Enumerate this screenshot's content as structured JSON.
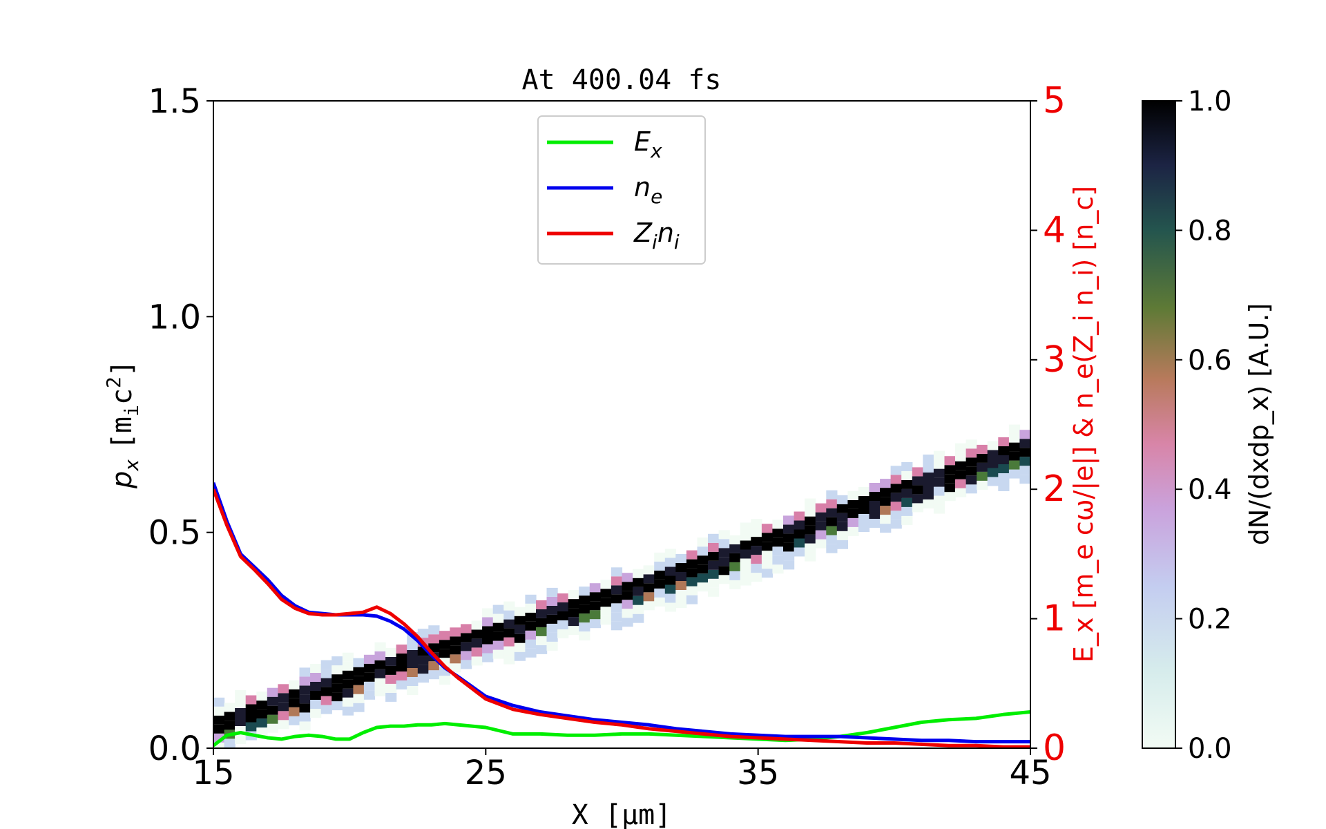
{
  "chart_data": {
    "type": "line",
    "title": "At 400.04 fs",
    "xlabel": "X [μm]",
    "ylabel_left": {
      "main": "p",
      "sub": "x",
      "unit": "[m",
      "unit_sub": "i",
      "unit_tail": "c",
      "unit_sup": "2",
      "unit_close": "]"
    },
    "ylabel_right": "E_x [m_e cω/|e|] & n_e(Z_i n_i) [n_c]",
    "xlim": [
      15,
      45
    ],
    "ylim_left": [
      0,
      1.5
    ],
    "ylim_right": [
      0,
      5
    ],
    "x_ticks": [
      "15",
      "25",
      "35",
      "45"
    ],
    "y_ticks_left": [
      "0.0",
      "0.5",
      "1.0",
      "1.5"
    ],
    "y_ticks_right": [
      "0",
      "1",
      "2",
      "3",
      "4",
      "5"
    ],
    "grid": false,
    "legend_position": "top-center",
    "series": [
      {
        "name": "E_x",
        "color": "#00ee00",
        "axis": "right",
        "x": [
          15,
          15.5,
          16,
          16.5,
          17,
          17.5,
          18,
          18.5,
          19,
          19.5,
          20,
          20.5,
          21,
          21.5,
          22,
          22.5,
          23,
          23.5,
          24,
          25,
          26,
          27,
          28,
          29,
          30,
          31,
          32,
          33,
          34,
          35,
          36,
          37,
          38,
          39,
          40,
          41,
          42,
          43,
          44,
          45
        ],
        "y": [
          0.02,
          0.1,
          0.12,
          0.1,
          0.08,
          0.07,
          0.09,
          0.1,
          0.09,
          0.07,
          0.07,
          0.12,
          0.16,
          0.17,
          0.17,
          0.18,
          0.18,
          0.19,
          0.18,
          0.16,
          0.11,
          0.11,
          0.1,
          0.1,
          0.11,
          0.11,
          0.1,
          0.09,
          0.08,
          0.07,
          0.06,
          0.07,
          0.09,
          0.12,
          0.16,
          0.2,
          0.22,
          0.23,
          0.26,
          0.28
        ]
      },
      {
        "name": "n_e",
        "color": "#0000ee",
        "axis": "right",
        "x": [
          15,
          15.5,
          16,
          16.5,
          17,
          17.5,
          18,
          18.5,
          19,
          19.5,
          20,
          20.5,
          21,
          21.5,
          22,
          22.5,
          23,
          23.5,
          24,
          25,
          26,
          27,
          28,
          29,
          30,
          31,
          32,
          33,
          34,
          35,
          36,
          37,
          38,
          39,
          40,
          41,
          42,
          43,
          44,
          45
        ],
        "y": [
          2.05,
          1.75,
          1.5,
          1.4,
          1.3,
          1.18,
          1.1,
          1.05,
          1.04,
          1.03,
          1.03,
          1.03,
          1.02,
          0.98,
          0.92,
          0.83,
          0.72,
          0.62,
          0.55,
          0.4,
          0.33,
          0.28,
          0.25,
          0.22,
          0.2,
          0.18,
          0.15,
          0.13,
          0.11,
          0.1,
          0.09,
          0.09,
          0.09,
          0.08,
          0.07,
          0.06,
          0.06,
          0.05,
          0.05,
          0.05
        ]
      },
      {
        "name": "Z_i n_i",
        "color": "#ee0000",
        "axis": "right",
        "x": [
          15,
          15.5,
          16,
          16.5,
          17,
          17.5,
          18,
          18.5,
          19,
          19.5,
          20,
          20.5,
          21,
          21.5,
          22,
          22.5,
          23,
          23.5,
          24,
          25,
          26,
          27,
          28,
          29,
          30,
          31,
          32,
          33,
          34,
          35,
          36,
          37,
          38,
          39,
          40,
          41,
          42,
          43,
          44,
          45
        ],
        "y": [
          2.0,
          1.72,
          1.48,
          1.38,
          1.27,
          1.15,
          1.08,
          1.04,
          1.03,
          1.03,
          1.04,
          1.05,
          1.09,
          1.04,
          0.96,
          0.86,
          0.74,
          0.63,
          0.54,
          0.38,
          0.3,
          0.26,
          0.23,
          0.2,
          0.18,
          0.15,
          0.13,
          0.11,
          0.09,
          0.08,
          0.07,
          0.06,
          0.05,
          0.04,
          0.04,
          0.03,
          0.02,
          0.02,
          0.01,
          0.01
        ]
      }
    ],
    "phase_space": {
      "description_values": "diagonal ion phase-space band, p_x vs X",
      "x": [
        15,
        20,
        25,
        30,
        35,
        40,
        45
      ],
      "px": [
        0.04,
        0.15,
        0.25,
        0.35,
        0.46,
        0.58,
        0.69
      ],
      "colormap": [
        "#f2fbf4",
        "#c8d8f0",
        "#c8a4dc",
        "#d87fa8",
        "#b07858",
        "#4a7a3a",
        "#1a4a50",
        "#1a1a2e",
        "#000000"
      ]
    },
    "colorbar": {
      "label": "dN/(dxdp_x) [A.U.]",
      "range": [
        0,
        1
      ],
      "ticks": [
        "0.0",
        "0.2",
        "0.4",
        "0.6",
        "0.8",
        "1.0"
      ]
    },
    "legend": [
      {
        "base": "E",
        "sub": "x",
        "base2": "",
        "sub2": "",
        "color": "#00ee00"
      },
      {
        "base": "n",
        "sub": "e",
        "base2": "",
        "sub2": "",
        "color": "#0000ee"
      },
      {
        "base": "Z",
        "sub": "i",
        "base2": "n",
        "sub2": "i",
        "color": "#ee0000"
      }
    ]
  }
}
